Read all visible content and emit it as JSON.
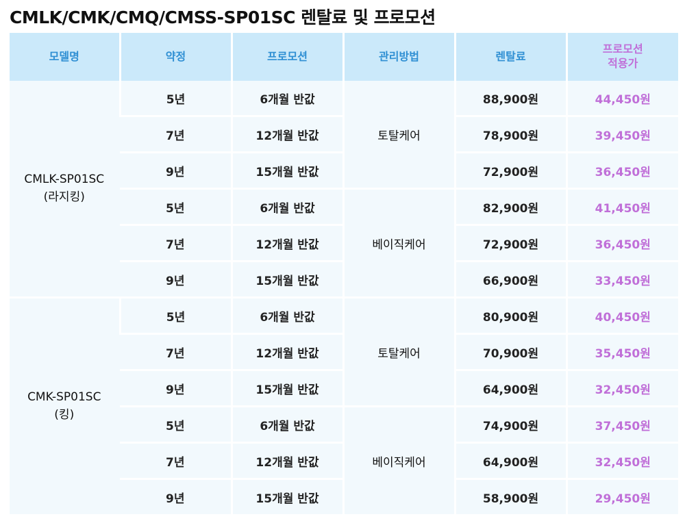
{
  "title": "CMLK/CMK/CMQ/CMSS-SP01SC 렌탈료 및 프로모션",
  "headers": {
    "model": "모델명",
    "term": "약정",
    "promotion": "프로모션",
    "care": "관리방법",
    "fee": "렌탈료",
    "final_line1": "프로모션",
    "final_line2": "적용가"
  },
  "groups": [
    {
      "model_line1": "CMLK-SP01SC",
      "model_line2": "(라지킹)",
      "care_blocks": [
        {
          "care": "토탈케어",
          "rows": [
            {
              "term": "5년",
              "promo": "6개월 반값",
              "fee": "88,900원",
              "final": "44,450원"
            },
            {
              "term": "7년",
              "promo": "12개월 반값",
              "fee": "78,900원",
              "final": "39,450원"
            },
            {
              "term": "9년",
              "promo": "15개월 반값",
              "fee": "72,900원",
              "final": "36,450원"
            }
          ]
        },
        {
          "care": "베이직케어",
          "rows": [
            {
              "term": "5년",
              "promo": "6개월 반값",
              "fee": "82,900원",
              "final": "41,450원"
            },
            {
              "term": "7년",
              "promo": "12개월 반값",
              "fee": "72,900원",
              "final": "36,450원"
            },
            {
              "term": "9년",
              "promo": "15개월 반값",
              "fee": "66,900원",
              "final": "33,450원"
            }
          ]
        }
      ]
    },
    {
      "model_line1": "CMK-SP01SC",
      "model_line2": "(킹)",
      "care_blocks": [
        {
          "care": "토탈케어",
          "rows": [
            {
              "term": "5년",
              "promo": "6개월 반값",
              "fee": "80,900원",
              "final": "40,450원"
            },
            {
              "term": "7년",
              "promo": "12개월 반값",
              "fee": "70,900원",
              "final": "35,450원"
            },
            {
              "term": "9년",
              "promo": "15개월 반값",
              "fee": "64,900원",
              "final": "32,450원"
            }
          ]
        },
        {
          "care": "베이직케어",
          "rows": [
            {
              "term": "5년",
              "promo": "6개월 반값",
              "fee": "74,900원",
              "final": "37,450원"
            },
            {
              "term": "7년",
              "promo": "12개월 반값",
              "fee": "64,900원",
              "final": "32,450원"
            },
            {
              "term": "9년",
              "promo": "15개월 반값",
              "fee": "58,900원",
              "final": "29,450원"
            }
          ]
        }
      ]
    }
  ],
  "colors": {
    "header_bg": "#cbe9fa",
    "header_text": "#2f8fd3",
    "promo_text": "#c06fd8",
    "cell_bg": "#f2f9fd"
  }
}
